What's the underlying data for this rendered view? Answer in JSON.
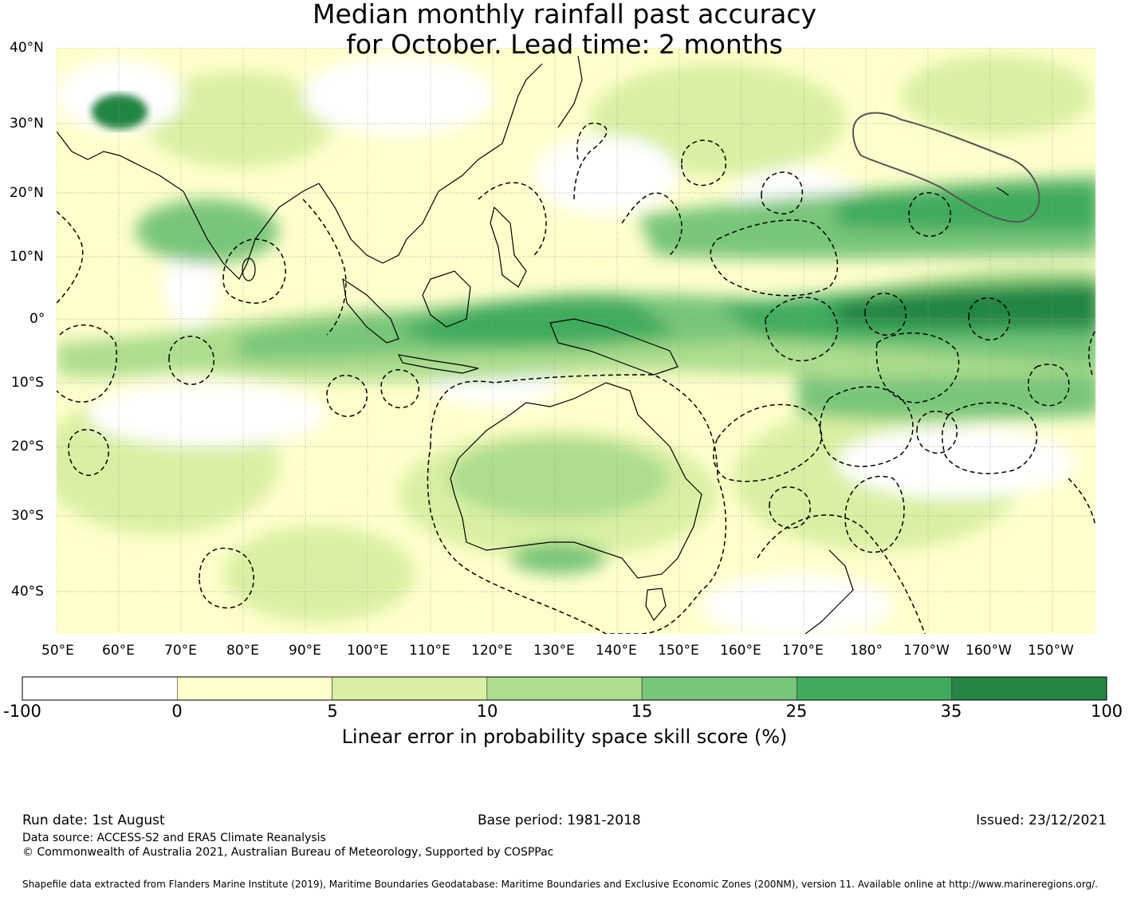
{
  "title": {
    "line1": "Median monthly rainfall past accuracy",
    "line2": "for October. Lead time: 2 months"
  },
  "map": {
    "lat_labels": [
      "40°N",
      "30°N",
      "20°N",
      "10°N",
      "0°",
      "10°S",
      "20°S",
      "30°S",
      "40°S"
    ],
    "lon_labels": [
      "50°E",
      "60°E",
      "70°E",
      "80°E",
      "90°E",
      "100°E",
      "110°E",
      "120°E",
      "130°E",
      "140°E",
      "150°E",
      "160°E",
      "170°E",
      "180°",
      "170°W",
      "160°W",
      "150°W"
    ],
    "colors": {
      "ocean_bg": "#ffffcc",
      "gridline": "#999999",
      "coast": "#000000",
      "eez": "#000000"
    }
  },
  "colorbar": {
    "ticks": [
      "-100",
      "0",
      "5",
      "10",
      "15",
      "25",
      "35",
      "100"
    ],
    "colors": [
      "#ffffff",
      "#ffffcc",
      "#d9f0a3",
      "#addd8e",
      "#78c679",
      "#41ab5d",
      "#238443"
    ],
    "label": "Linear error in probability space skill score (%)"
  },
  "footer": {
    "run_date": "Run date: 1st August",
    "base_period": "Base period: 1981-2018",
    "issued": "Issued: 23/12/2021",
    "data_source": "Data source: ACCESS-S2 and ERA5 Climate Reanalysis",
    "copyright": "© Commonwealth of Australia 2021, Australian Bureau of Meteorology, Supported by COSPPac",
    "shapefile": "Shapefile data extracted from Flanders Marine Institute (2019), Maritime Boundaries Geodatabase: Maritime Boundaries and Exclusive Economic Zones (200NM), version 11. Available online at http://www.marineregions.org/."
  }
}
